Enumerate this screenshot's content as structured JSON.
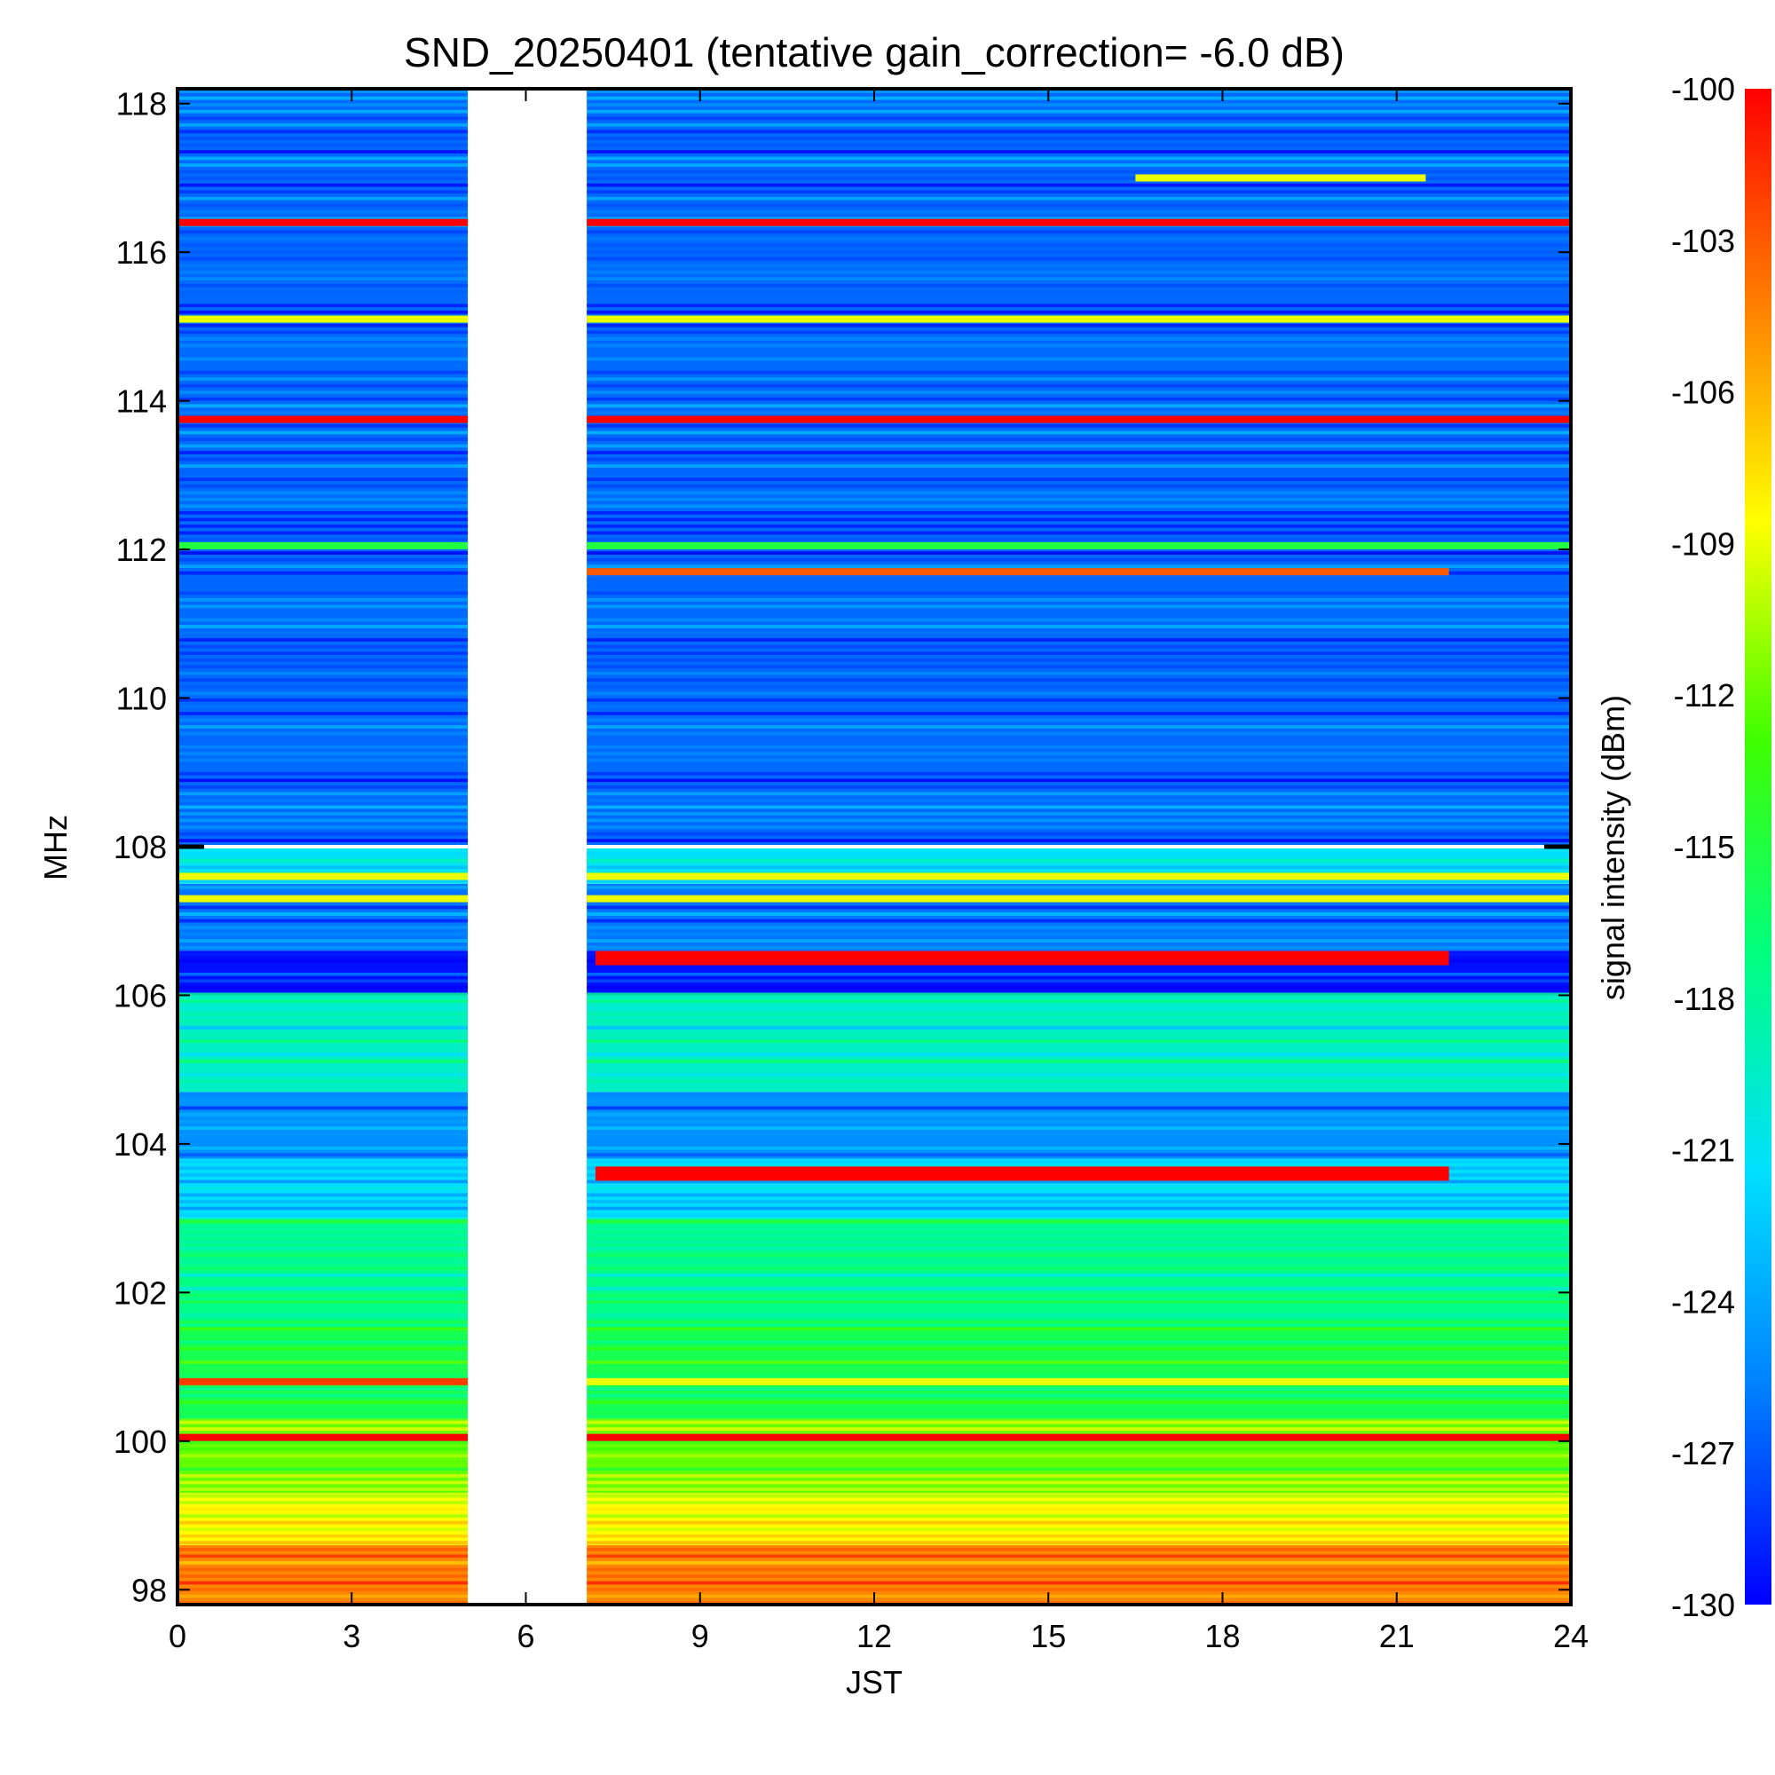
{
  "chart_data": {
    "type": "heatmap",
    "title": "SND_20250401 (tentative gain_correction= -6.0 dB)",
    "xlabel": "JST",
    "ylabel": "MHz",
    "colorbar_label": "signal intensity (dBm)",
    "xlim": [
      0,
      24
    ],
    "ylim": [
      97.8,
      118.2
    ],
    "x_ticks": [
      "0",
      "3",
      "6",
      "9",
      "12",
      "15",
      "18",
      "21",
      "24"
    ],
    "y_ticks": [
      "98",
      "100",
      "102",
      "104",
      "106",
      "108",
      "110",
      "112",
      "114",
      "116",
      "118"
    ],
    "colorbar_range": [
      -130,
      -100
    ],
    "colorbar_ticks": [
      "-100",
      "-103",
      "-106",
      "-109",
      "-112",
      "-115",
      "-118",
      "-121",
      "-124",
      "-127",
      "-130"
    ],
    "colormap": [
      "#0000ff",
      "#0080ff",
      "#00e0ff",
      "#00ff80",
      "#40ff00",
      "#ffff00",
      "#ff8000",
      "#ff0000"
    ],
    "data_gap_jst": [
      5.0,
      7.05
    ],
    "frequency_bands": [
      {
        "from": 97.8,
        "to": 98.6,
        "dbm": -104.5
      },
      {
        "from": 98.6,
        "to": 99.3,
        "dbm": -108.5
      },
      {
        "from": 99.3,
        "to": 100.3,
        "dbm": -112
      },
      {
        "from": 100.3,
        "to": 101.5,
        "dbm": -115.5
      },
      {
        "from": 101.5,
        "to": 103.0,
        "dbm": -117.5
      },
      {
        "from": 103.0,
        "to": 103.8,
        "dbm": -121.5
      },
      {
        "from": 103.8,
        "to": 104.7,
        "dbm": -125
      },
      {
        "from": 104.7,
        "to": 106.0,
        "dbm": -119.5
      },
      {
        "from": 106.0,
        "to": 106.6,
        "dbm": -129.5
      },
      {
        "from": 106.6,
        "to": 107.5,
        "dbm": -126
      },
      {
        "from": 107.5,
        "to": 108.0,
        "dbm": -121
      },
      {
        "from": 108.0,
        "to": 118.2,
        "dbm": -126.5
      }
    ],
    "persistent_signals": [
      {
        "freq_mhz": 116.4,
        "dbm": -100,
        "jst": [
          0,
          24
        ]
      },
      {
        "freq_mhz": 115.1,
        "dbm": -109,
        "jst": [
          0,
          24
        ]
      },
      {
        "freq_mhz": 113.75,
        "dbm": -100,
        "jst": [
          0,
          24
        ]
      },
      {
        "freq_mhz": 112.05,
        "dbm": -115,
        "jst": [
          0,
          24
        ]
      },
      {
        "freq_mhz": 111.7,
        "dbm": -103,
        "jst": [
          7.05,
          21.9
        ]
      },
      {
        "freq_mhz": 117.0,
        "dbm": -109,
        "jst": [
          16.5,
          21.5
        ]
      },
      {
        "freq_mhz": 107.3,
        "dbm": -109,
        "jst": [
          0,
          24
        ]
      },
      {
        "freq_mhz": 107.6,
        "dbm": -109,
        "jst": [
          0,
          24
        ]
      },
      {
        "freq_mhz": 106.5,
        "dbm": -100,
        "jst": [
          7.2,
          21.9
        ]
      },
      {
        "freq_mhz": 103.6,
        "dbm": -100,
        "jst": [
          7.2,
          21.9
        ]
      },
      {
        "freq_mhz": 100.8,
        "dbm": -102,
        "jst": [
          0,
          5
        ]
      },
      {
        "freq_mhz": 100.8,
        "dbm": -109,
        "jst": [
          7.05,
          24
        ]
      },
      {
        "freq_mhz": 100.05,
        "dbm": -100,
        "jst": [
          0,
          24
        ]
      }
    ]
  }
}
